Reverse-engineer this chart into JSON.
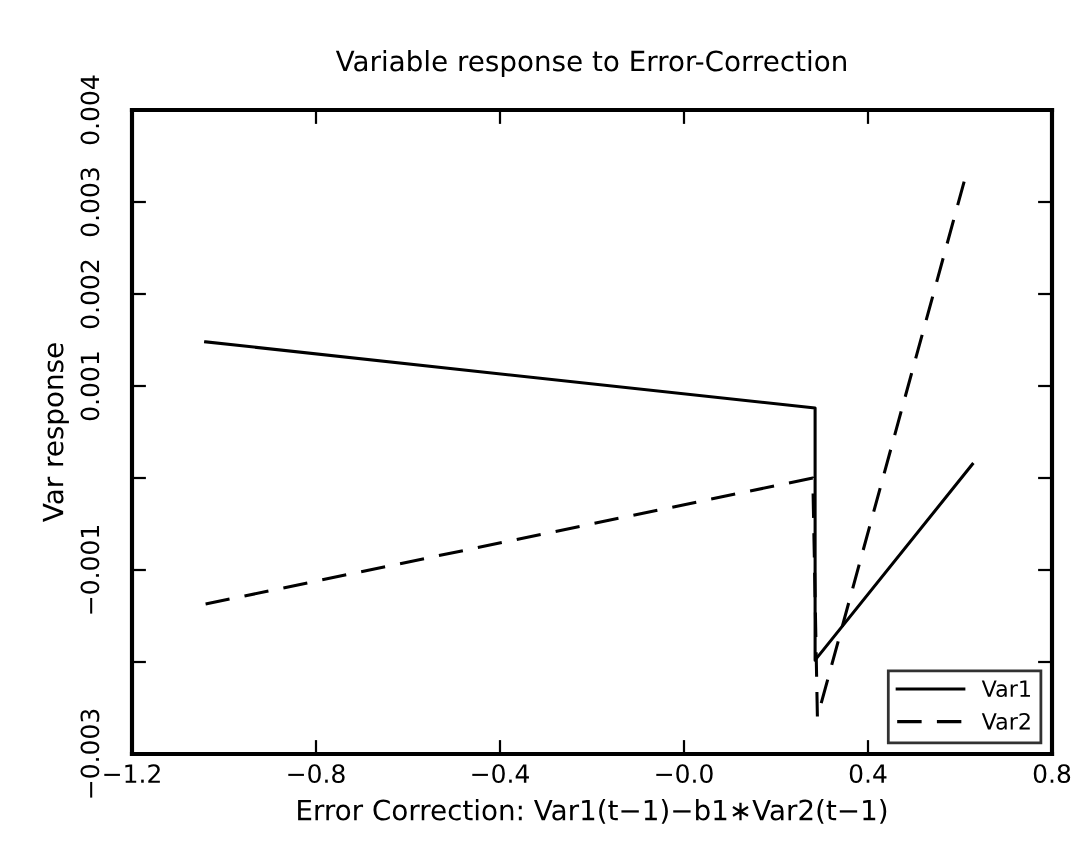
{
  "chart_data": {
    "type": "line",
    "title": "Variable response to Error-Correction",
    "xlabel": "Error Correction: Var1(t−1)−b1∗Var2(t−1)",
    "ylabel": "Var response",
    "xlim": [
      -1.2,
      0.8
    ],
    "xticks": [
      -1.2,
      -0.8,
      -0.4,
      {
        "value": 0.0,
        "label": "−0.0"
      },
      0.4,
      0.8
    ],
    "ylim": [
      -0.003,
      0.004
    ],
    "yticks": [
      -0.003,
      {
        "value": -0.002,
        "label": null
      },
      -0.001,
      {
        "value": 0,
        "label": null
      },
      0.001,
      0.002,
      0.003,
      0.004
    ],
    "series": [
      {
        "name": "Var1",
        "color": "#000000",
        "line_style": "solid",
        "x": [
          -1.04,
          0.285,
          0.285,
          0.627
        ],
        "values": [
          0.00148,
          0.00076,
          -0.00198,
          0.00015
        ]
      },
      {
        "name": "Var2",
        "color": "#000000",
        "line_style": "dashed",
        "x": [
          -1.04,
          0.28,
          0.29,
          0.61
        ],
        "values": [
          -0.00137,
          0.0,
          -0.0026,
          0.00324
        ]
      }
    ],
    "legend": "bottom right",
    "grid": false,
    "marker": "none"
  }
}
